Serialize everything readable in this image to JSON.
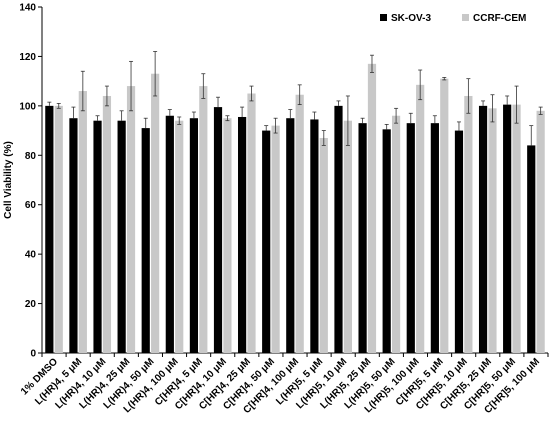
{
  "chart_data": {
    "type": "bar",
    "ylabel": "Cell Viability  (%)",
    "ylim": [
      0,
      140
    ],
    "yticks": [
      0,
      20,
      40,
      60,
      80,
      100,
      120,
      140
    ],
    "grid": false,
    "legend_position": "top-right",
    "categories": [
      "1% DMSO",
      "L(HR)4, 5 μM",
      "L(HR)4, 10 μM",
      "L(HR)4, 25 μM",
      "L(HR)4, 50 μM",
      "L(HR)4, 100 μM",
      "C[HR]4, 5 μM",
      "C[HR]4, 10 μM",
      "C[HR]4, 25 μM",
      "C[HR]4, 50 μM",
      "C[HR]4, 100 μM",
      "L(HR)5, 5 μM",
      "L(HR)5, 10 μM",
      "L(HR)5, 25 μM",
      "L(HR)5, 50 μM",
      "L(HR)5, 100 μM",
      "C[HR]5, 5 μM",
      "C[HR]5, 10 μM",
      "C[HR]5, 25 μM",
      "C[HR]5, 50 μM",
      "C[HR]5, 100 μM"
    ],
    "series": [
      {
        "name": "SK-OV-3",
        "color": "#000000",
        "values": [
          100,
          95,
          94,
          94,
          91,
          96,
          95,
          99.5,
          95.5,
          90,
          95,
          94.5,
          100,
          93,
          90.5,
          93,
          93,
          90,
          100,
          100.5,
          84
        ],
        "errors": [
          1.5,
          4.5,
          2,
          4,
          4,
          2.5,
          2.5,
          4,
          4,
          2,
          3.5,
          3,
          2,
          2,
          2,
          4,
          3,
          3.5,
          2,
          3.5,
          8
        ]
      },
      {
        "name": "CCRF-CEM",
        "color": "#c8c8c8",
        "values": [
          100,
          106,
          104,
          108,
          113,
          94,
          108,
          95,
          105,
          92,
          104.5,
          87,
          94,
          117,
          96,
          108.5,
          111,
          104,
          99,
          100.5,
          98
        ],
        "errors": [
          1,
          8,
          4,
          10,
          9,
          1.5,
          5,
          1,
          3,
          3,
          4,
          3,
          10,
          3.5,
          3,
          6,
          0.5,
          7,
          5.5,
          7.5,
          1.5
        ]
      }
    ]
  }
}
